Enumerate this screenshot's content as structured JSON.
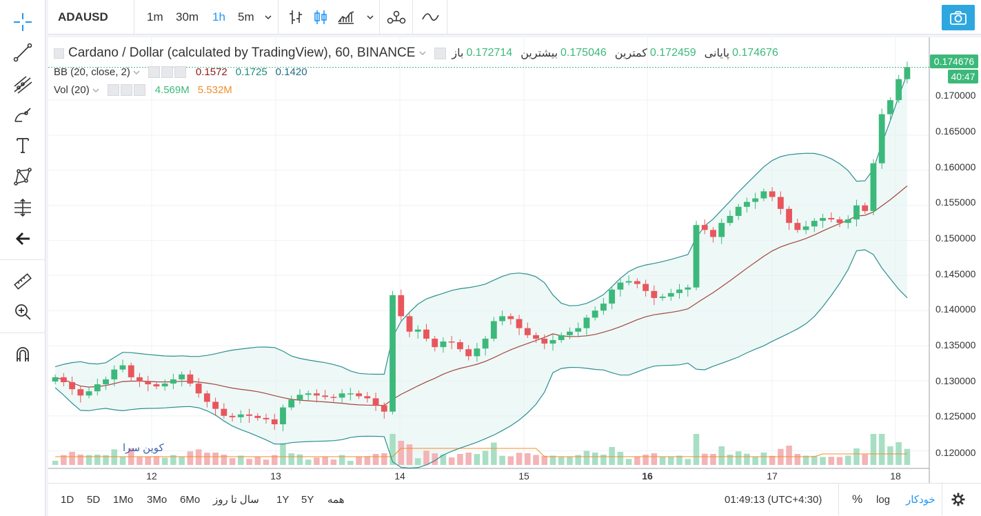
{
  "toolbar": {
    "symbol": "ADAUSD",
    "intervals": [
      "1m",
      "30m",
      "1h",
      "5m"
    ],
    "active_interval": "1h"
  },
  "legend": {
    "title": "Cardano / Dollar (calculated by TradingView), 60, BINANCE",
    "open_label": "باز",
    "open": "0.172714",
    "high_label": "بیشترین",
    "high": "0.175046",
    "low_label": "کمترین",
    "low": "0.172459",
    "close_label": "پایانی",
    "close": "0.174676"
  },
  "indicators": [
    {
      "name": "BB (20, close, 2)",
      "values": [
        "0.1572",
        "0.1725",
        "0.1420"
      ],
      "colors": [
        "#8b1a1a",
        "#1e8c7e",
        "#1e6e80"
      ]
    },
    {
      "name": "Vol (20)",
      "values": [
        "4.569M",
        "5.532M"
      ],
      "colors": [
        "#3cb97a",
        "#f28c28"
      ]
    }
  ],
  "price_axis": {
    "labels": [
      "0.170000",
      "0.165000",
      "0.160000",
      "0.155000",
      "0.150000",
      "0.145000",
      "0.140000",
      "0.135000",
      "0.130000",
      "0.125000",
      "0.120000"
    ],
    "last_price": "0.174676",
    "countdown": "40:47"
  },
  "time_axis": {
    "labels": [
      "12",
      "13",
      "14",
      "15",
      "16",
      "17",
      "18"
    ],
    "bold_label": "16"
  },
  "watermark": "کوین سرا",
  "bottom": {
    "ranges": [
      "1D",
      "5D",
      "1Mo",
      "3Mo",
      "6Mo",
      "سال تا روز",
      "1Y",
      "5Y",
      "همه"
    ],
    "clock": "01:49:13 (UTC+4:30)",
    "percent": "%",
    "log": "log",
    "auto": "خودکار"
  },
  "colors": {
    "up": "#3cb97a",
    "down": "#e8565c",
    "bb_band": "#2a8f8f",
    "bb_mid": "#a0463c",
    "vol_ma": "#f28c28"
  },
  "chart_data": {
    "type": "candlestick",
    "title": "Cardano / Dollar (calculated by TradingView), 60, BINANCE",
    "x_ticks": [
      "12",
      "13",
      "14",
      "15",
      "16",
      "17",
      "18"
    ],
    "ylim": [
      0.118,
      0.177
    ],
    "y_ticks": [
      0.12,
      0.125,
      0.13,
      0.135,
      0.14,
      0.145,
      0.15,
      0.155,
      0.16,
      0.165,
      0.17
    ],
    "last": {
      "open": 0.172714,
      "high": 0.175046,
      "low": 0.172459,
      "close": 0.174676
    },
    "close_series": [
      0.1305,
      0.1298,
      0.1288,
      0.1279,
      0.1285,
      0.1295,
      0.1302,
      0.1316,
      0.1322,
      0.1305,
      0.1299,
      0.1295,
      0.1292,
      0.1296,
      0.1302,
      0.1309,
      0.1296,
      0.1282,
      0.127,
      0.126,
      0.125,
      0.1248,
      0.1252,
      0.125,
      0.1247,
      0.1245,
      0.1238,
      0.1262,
      0.1273,
      0.128,
      0.1282,
      0.1279,
      0.1277,
      0.1276,
      0.1282,
      0.1282,
      0.1278,
      0.1275,
      0.1265,
      0.1256,
      0.1422,
      0.1392,
      0.137,
      0.1373,
      0.136,
      0.1348,
      0.1356,
      0.1355,
      0.1345,
      0.1335,
      0.1346,
      0.136,
      0.1385,
      0.1392,
      0.1388,
      0.1375,
      0.1365,
      0.136,
      0.1353,
      0.1358,
      0.1365,
      0.137,
      0.1375,
      0.139,
      0.14,
      0.141,
      0.143,
      0.144,
      0.1442,
      0.1438,
      0.1428,
      0.1418,
      0.142,
      0.1425,
      0.143,
      0.1433,
      0.1522,
      0.1515,
      0.1505,
      0.1525,
      0.1535,
      0.1548,
      0.1555,
      0.156,
      0.157,
      0.1562,
      0.1545,
      0.1525,
      0.1515,
      0.152,
      0.1528,
      0.1532,
      0.153,
      0.1525,
      0.153,
      0.155,
      0.1542,
      0.161,
      0.168,
      0.17,
      0.173,
      0.1747
    ],
    "bb_upper_end": 0.1572,
    "bb_basis_end": 0.1725,
    "bb_lower_end": 0.142,
    "volume_end": "4.569M",
    "volume_ma_end": "5.532M"
  }
}
